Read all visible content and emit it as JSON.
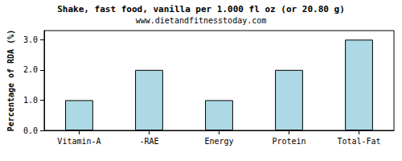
{
  "chart_data": {
    "type": "bar",
    "title": "Shake, fast food, vanilla per 1.000 fl oz (or 20.80 g)",
    "subtitle": "www.dietandfitnesstoday.com",
    "y_label": "Percentage of RDA (%)",
    "categories": [
      "Vitamin-A",
      "-RAE",
      "Energy",
      "Protein",
      "Total-Fat"
    ],
    "values": [
      1,
      2,
      1,
      2,
      3
    ],
    "color": "#add8e6",
    "ylim": [
      0,
      3.3
    ],
    "yticks": [
      {
        "value": 0,
        "label": "0.0"
      },
      {
        "value": 1,
        "label": "1.0"
      },
      {
        "value": 2,
        "label": "2.0"
      },
      {
        "value": 3,
        "label": "3.0"
      }
    ],
    "grid": false
  }
}
